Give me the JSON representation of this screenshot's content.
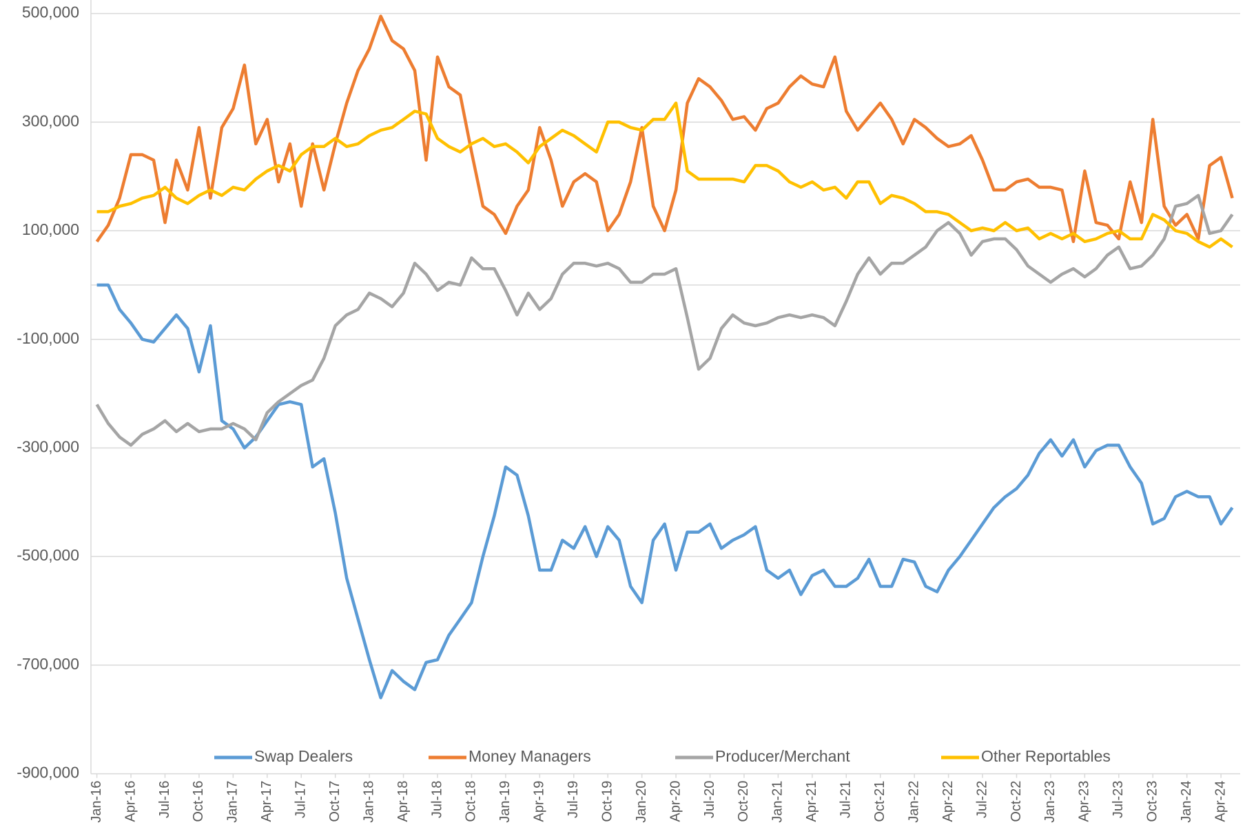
{
  "chart_data": {
    "type": "line",
    "categories": [
      "Jan-16",
      null,
      null,
      "Apr-16",
      null,
      null,
      "Jul-16",
      null,
      null,
      "Oct-16",
      null,
      null,
      "Jan-17",
      null,
      null,
      "Apr-17",
      null,
      null,
      "Jul-17",
      null,
      null,
      "Oct-17",
      null,
      null,
      "Jan-18",
      null,
      null,
      "Apr-18",
      null,
      null,
      "Jul-18",
      null,
      null,
      "Oct-18",
      null,
      null,
      "Jan-19",
      null,
      null,
      "Apr-19",
      null,
      null,
      "Jul-19",
      null,
      null,
      "Oct-19",
      null,
      null,
      "Jan-20",
      null,
      null,
      "Apr-20",
      null,
      null,
      "Jul-20",
      null,
      null,
      "Oct-20",
      null,
      null,
      "Jan-21",
      null,
      null,
      "Apr-21",
      null,
      null,
      "Jul-21",
      null,
      null,
      "Oct-21",
      null,
      null,
      "Jan-22",
      null,
      null,
      "Apr-22",
      null,
      null,
      "Jul-22",
      null,
      null,
      "Oct-22",
      null,
      null,
      "Jan-23",
      null,
      null,
      "Apr-23",
      null,
      null,
      "Jul-23",
      null,
      null,
      "Oct-23",
      null,
      null,
      "Jan-24",
      null,
      null,
      "Apr-24",
      null
    ],
    "series": [
      {
        "name": "Swap Dealers",
        "color": "#5b9bd5",
        "values": [
          0,
          0,
          -45000,
          -70000,
          -100000,
          -105000,
          -80000,
          -55000,
          -80000,
          -160000,
          -75000,
          -250000,
          -265000,
          -300000,
          -280000,
          -250000,
          -220000,
          -215000,
          -220000,
          -335000,
          -320000,
          -420000,
          -540000,
          -615000,
          -690000,
          -760000,
          -710000,
          -730000,
          -745000,
          -695000,
          -690000,
          -645000,
          -615000,
          -585000,
          -500000,
          -425000,
          -335000,
          -350000,
          -425000,
          -525000,
          -525000,
          -470000,
          -485000,
          -445000,
          -500000,
          -445000,
          -470000,
          -555000,
          -585000,
          -470000,
          -440000,
          -525000,
          -455000,
          -455000,
          -440000,
          -485000,
          -470000,
          -460000,
          -445000,
          -525000,
          -540000,
          -525000,
          -570000,
          -535000,
          -525000,
          -555000,
          -555000,
          -540000,
          -505000,
          -555000,
          -555000,
          -505000,
          -510000,
          -555000,
          -565000,
          -525000,
          -500000,
          -470000,
          -440000,
          -410000,
          -390000,
          -375000,
          -350000,
          -310000,
          -285000,
          -315000,
          -285000,
          -335000,
          -305000,
          -295000,
          -295000,
          -335000,
          -365000,
          -440000,
          -430000,
          -390000,
          -380000,
          -390000,
          -390000,
          -440000,
          -410000
        ]
      },
      {
        "name": "Money Managers",
        "color": "#ed7d31",
        "values": [
          80000,
          110000,
          160000,
          240000,
          240000,
          230000,
          115000,
          230000,
          175000,
          290000,
          160000,
          290000,
          325000,
          405000,
          260000,
          305000,
          190000,
          260000,
          145000,
          260000,
          175000,
          260000,
          335000,
          395000,
          435000,
          495000,
          450000,
          435000,
          395000,
          230000,
          420000,
          365000,
          350000,
          245000,
          145000,
          130000,
          95000,
          145000,
          175000,
          290000,
          230000,
          145000,
          190000,
          205000,
          190000,
          100000,
          130000,
          190000,
          290000,
          145000,
          100000,
          175000,
          335000,
          380000,
          365000,
          340000,
          305000,
          310000,
          285000,
          325000,
          335000,
          365000,
          385000,
          370000,
          365000,
          420000,
          320000,
          285000,
          310000,
          335000,
          305000,
          260000,
          305000,
          290000,
          270000,
          255000,
          260000,
          275000,
          230000,
          175000,
          175000,
          190000,
          195000,
          180000,
          180000,
          175000,
          80000,
          210000,
          115000,
          110000,
          85000,
          190000,
          115000,
          305000,
          145000,
          110000,
          130000,
          85000,
          220000,
          235000,
          160000
        ]
      },
      {
        "name": "Producer/Merchant",
        "color": "#a5a5a5",
        "values": [
          -220000,
          -255000,
          -280000,
          -295000,
          -275000,
          -265000,
          -250000,
          -270000,
          -255000,
          -270000,
          -265000,
          -265000,
          -255000,
          -265000,
          -285000,
          -235000,
          -215000,
          -200000,
          -185000,
          -175000,
          -135000,
          -75000,
          -55000,
          -45000,
          -15000,
          -25000,
          -40000,
          -15000,
          40000,
          20000,
          -10000,
          5000,
          0,
          50000,
          30000,
          30000,
          -10000,
          -55000,
          -15000,
          -45000,
          -25000,
          20000,
          40000,
          40000,
          35000,
          40000,
          30000,
          5000,
          5000,
          20000,
          20000,
          30000,
          -60000,
          -155000,
          -135000,
          -80000,
          -55000,
          -70000,
          -75000,
          -70000,
          -60000,
          -55000,
          -60000,
          -55000,
          -60000,
          -75000,
          -30000,
          20000,
          50000,
          20000,
          40000,
          40000,
          55000,
          70000,
          100000,
          115000,
          95000,
          55000,
          80000,
          85000,
          85000,
          65000,
          35000,
          20000,
          5000,
          20000,
          30000,
          15000,
          30000,
          55000,
          70000,
          30000,
          35000,
          55000,
          85000,
          145000,
          150000,
          165000,
          95000,
          100000,
          130000
        ]
      },
      {
        "name": "Other Reportables",
        "color": "#ffc000",
        "values": [
          135000,
          135000,
          145000,
          150000,
          160000,
          165000,
          180000,
          160000,
          150000,
          165000,
          175000,
          165000,
          180000,
          175000,
          195000,
          210000,
          220000,
          210000,
          240000,
          255000,
          255000,
          270000,
          255000,
          260000,
          275000,
          285000,
          290000,
          305000,
          320000,
          315000,
          270000,
          255000,
          245000,
          260000,
          270000,
          255000,
          260000,
          245000,
          225000,
          255000,
          270000,
          285000,
          275000,
          260000,
          245000,
          300000,
          300000,
          290000,
          285000,
          305000,
          305000,
          335000,
          210000,
          195000,
          195000,
          195000,
          195000,
          190000,
          220000,
          220000,
          210000,
          190000,
          180000,
          190000,
          175000,
          180000,
          160000,
          190000,
          190000,
          150000,
          165000,
          160000,
          150000,
          135000,
          135000,
          130000,
          115000,
          100000,
          105000,
          100000,
          115000,
          100000,
          105000,
          85000,
          95000,
          85000,
          95000,
          80000,
          85000,
          95000,
          100000,
          85000,
          85000,
          130000,
          120000,
          100000,
          95000,
          80000,
          70000,
          85000,
          70000
        ]
      }
    ],
    "ylim": [
      -900000,
      500000
    ],
    "yticks": [
      {
        "value": -900000,
        "label": "-900,000"
      },
      {
        "value": -700000,
        "label": "-700,000"
      },
      {
        "value": -500000,
        "label": "-500,000"
      },
      {
        "value": -300000,
        "label": "-300,000"
      },
      {
        "value": -100000,
        "label": "-100,000"
      },
      {
        "value": 100000,
        "label": "100,000"
      },
      {
        "value": 300000,
        "label": "300,000"
      },
      {
        "value": 500000,
        "label": "500,000"
      }
    ],
    "grid": true,
    "legend": "bottom"
  }
}
